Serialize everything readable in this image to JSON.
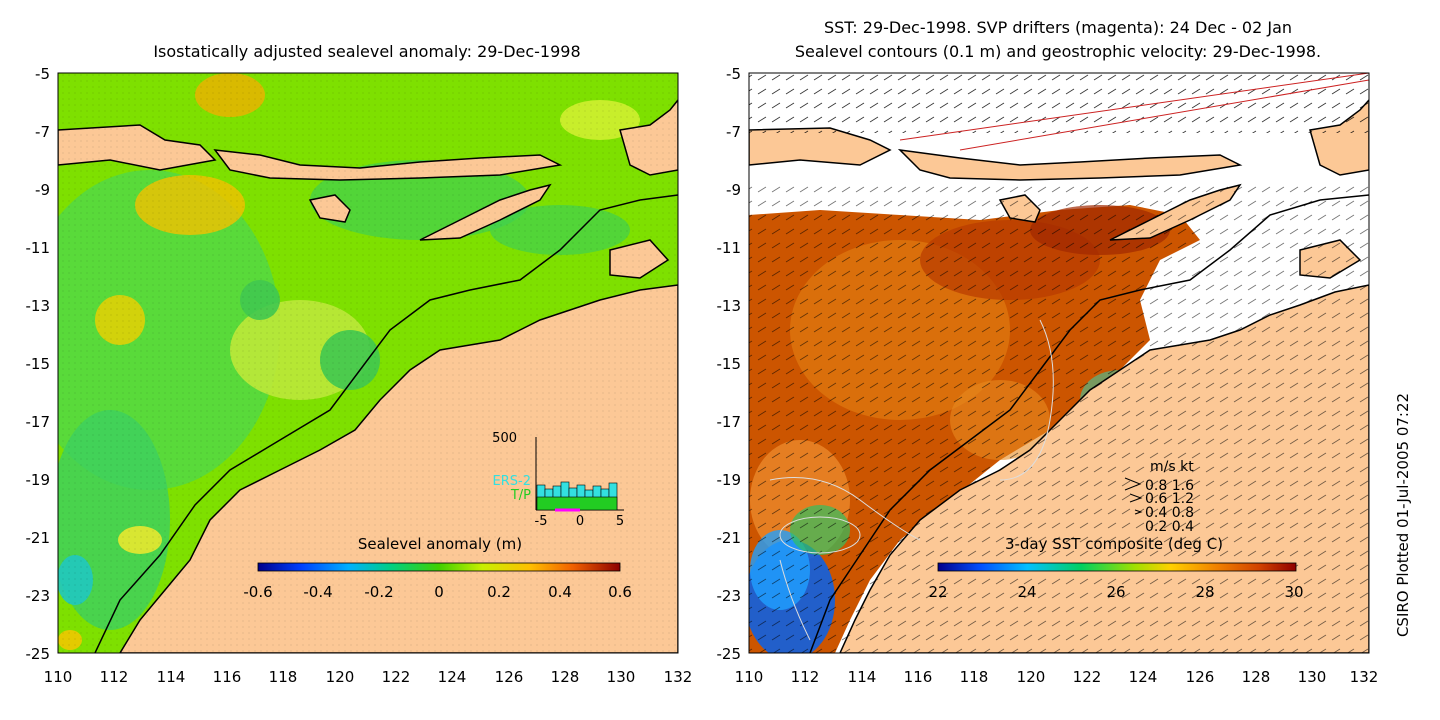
{
  "left_panel": {
    "title": "Isostatically adjusted sealevel anomaly: 29-Dec-1998",
    "x_ticks": [
      "110",
      "112",
      "114",
      "116",
      "118",
      "120",
      "122",
      "124",
      "126",
      "128",
      "130",
      "132"
    ],
    "y_ticks": [
      "-5",
      "-7",
      "-9",
      "-11",
      "-13",
      "-15",
      "-17",
      "-19",
      "-21",
      "-23",
      "-25"
    ],
    "colorbar": {
      "label": "Sealevel anomaly (m)",
      "ticks": [
        "-0.6",
        "-0.4",
        "-0.2",
        "0",
        "0.2",
        "0.4",
        "0.6"
      ]
    },
    "inset": {
      "y_label": "500",
      "legend": [
        "ERS-2",
        "T/P"
      ],
      "x_ticks": [
        "-5",
        "0",
        "5"
      ],
      "legend_colors": [
        "#33e0e0",
        "#22cc22"
      ]
    }
  },
  "right_panel": {
    "title_line1": "SST: 29-Dec-1998. SVP drifters (magenta): 24 Dec - 02 Jan",
    "title_line2": "Sealevel contours (0.1 m) and geostrophic velocity: 29-Dec-1998.",
    "x_ticks": [
      "110",
      "112",
      "114",
      "116",
      "118",
      "120",
      "122",
      "124",
      "126",
      "128",
      "130",
      "132"
    ],
    "y_ticks": [
      "-5",
      "-7",
      "-9",
      "-11",
      "-13",
      "-15",
      "-17",
      "-19",
      "-21",
      "-23",
      "-25"
    ],
    "colorbar": {
      "label": "3-day SST composite (deg C)",
      "ticks": [
        "22",
        "24",
        "26",
        "28",
        "30"
      ]
    },
    "velocity_key": {
      "header": "m/s  kt",
      "rows": [
        "0.8  1.6",
        "0.6  1.2",
        "0.4  0.8",
        "0.2  0.4"
      ]
    }
  },
  "credit": "CSIRO Plotted 01-Jul-2005 07:22",
  "colors": {
    "land": "#fcc896",
    "sla_background": "#7ee000",
    "sst_background": "#cc5500"
  }
}
